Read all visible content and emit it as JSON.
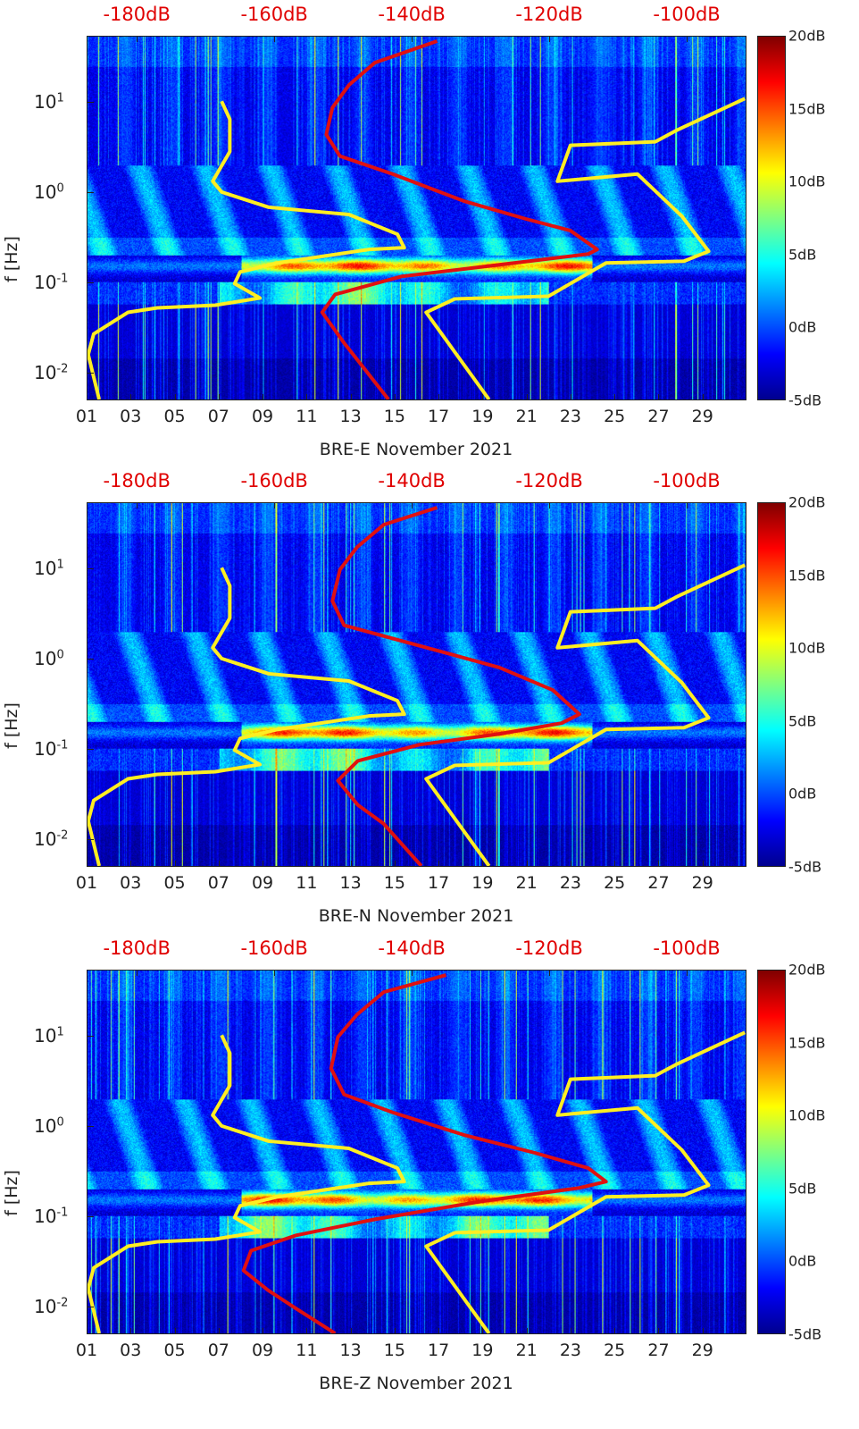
{
  "chart_data": {
    "type": "heatmap",
    "colorbar": {
      "ticks": [
        "20dB",
        "15dB",
        "10dB",
        "5dB",
        "0dB",
        "-5dB"
      ],
      "range": [
        -5,
        20
      ],
      "colormap": "jet"
    },
    "x_range_days": [
      1,
      31
    ],
    "y_range_log10_hz": [
      -2.31,
      1.73
    ],
    "top_axis_range_db": [
      -187.3,
      -91.3
    ],
    "top_ticks": [
      {
        "label": "-180dB",
        "value": -180
      },
      {
        "label": "-160dB",
        "value": -160
      },
      {
        "label": "-140dB",
        "value": -140
      },
      {
        "label": "-120dB",
        "value": -120
      },
      {
        "label": "-100dB",
        "value": -100
      }
    ],
    "x_ticks": [
      {
        "label": "01",
        "value": 1
      },
      {
        "label": "03",
        "value": 3
      },
      {
        "label": "05",
        "value": 5
      },
      {
        "label": "07",
        "value": 7
      },
      {
        "label": "09",
        "value": 9
      },
      {
        "label": "11",
        "value": 11
      },
      {
        "label": "13",
        "value": 13
      },
      {
        "label": "15",
        "value": 15
      },
      {
        "label": "17",
        "value": 17
      },
      {
        "label": "19",
        "value": 19
      },
      {
        "label": "21",
        "value": 21
      },
      {
        "label": "23",
        "value": 23
      },
      {
        "label": "25",
        "value": 25
      },
      {
        "label": "27",
        "value": 27
      },
      {
        "label": "29",
        "value": 29
      }
    ],
    "y_ticks": [
      {
        "base": "10",
        "exp": "1",
        "value": 1
      },
      {
        "base": "10",
        "exp": "0",
        "value": 0
      },
      {
        "base": "10",
        "exp": "-1",
        "value": -1
      },
      {
        "base": "10",
        "exp": "-2",
        "value": -2
      }
    ],
    "ylabel": "f [Hz]",
    "colors": {
      "nlnm": "#ffee22",
      "nhnm": "#ffee22",
      "median": "#e01010"
    },
    "nlnm_db_log10f": [
      [
        -185.7,
        -2.31
      ],
      [
        -187.3,
        -1.81
      ],
      [
        -186.5,
        -1.58
      ],
      [
        -181.5,
        -1.34
      ],
      [
        -177.2,
        -1.29
      ],
      [
        -168.7,
        -1.26
      ],
      [
        -162.2,
        -1.18
      ],
      [
        -165.9,
        -1.02
      ],
      [
        -165.1,
        -0.89
      ],
      [
        -159.6,
        -0.79
      ],
      [
        -146.3,
        -0.64
      ],
      [
        -141.1,
        -0.62
      ],
      [
        -142.1,
        -0.47
      ],
      [
        -149.2,
        -0.25
      ],
      [
        -160.9,
        -0.17
      ],
      [
        -167.8,
        0.0
      ],
      [
        -169.1,
        0.12
      ],
      [
        -166.6,
        0.45
      ],
      [
        -166.6,
        0.81
      ],
      [
        -167.8,
        1.01
      ]
    ],
    "nhnm_db_log10f": [
      [
        -128.7,
        -2.31
      ],
      [
        -137.9,
        -1.34
      ],
      [
        -133.7,
        -1.19
      ],
      [
        -120.0,
        -1.16
      ],
      [
        -111.6,
        -0.79
      ],
      [
        -100.2,
        -0.77
      ],
      [
        -96.6,
        -0.66
      ],
      [
        -100.5,
        -0.27
      ],
      [
        -107.0,
        0.2
      ],
      [
        -118.7,
        0.12
      ],
      [
        -116.8,
        0.52
      ],
      [
        -104.4,
        0.56
      ],
      [
        -101.2,
        0.69
      ],
      [
        -91.3,
        1.04
      ]
    ],
    "panels": [
      {
        "xlabel": "BRE-E November 2021",
        "median_db_log10f": [
          [
            -143.4,
            -2.31
          ],
          [
            -149.9,
            -1.68
          ],
          [
            -153.1,
            -1.34
          ],
          [
            -151.2,
            -1.14
          ],
          [
            -141.5,
            -0.94
          ],
          [
            -127.2,
            -0.81
          ],
          [
            -114.2,
            -0.69
          ],
          [
            -112.9,
            -0.64
          ],
          [
            -116.8,
            -0.43
          ],
          [
            -123.3,
            -0.3
          ],
          [
            -132.4,
            -0.1
          ],
          [
            -142.8,
            0.2
          ],
          [
            -150.5,
            0.4
          ],
          [
            -152.5,
            0.64
          ],
          [
            -151.6,
            0.94
          ],
          [
            -149.2,
            1.19
          ],
          [
            -145.4,
            1.44
          ],
          [
            -136.3,
            1.68
          ]
        ]
      },
      {
        "xlabel": "BRE-N November 2021",
        "median_db_log10f": [
          [
            -138.6,
            -2.31
          ],
          [
            -144.1,
            -1.84
          ],
          [
            -147.9,
            -1.63
          ],
          [
            -150.8,
            -1.36
          ],
          [
            -147.9,
            -1.14
          ],
          [
            -138.9,
            -0.96
          ],
          [
            -127.2,
            -0.84
          ],
          [
            -118.1,
            -0.72
          ],
          [
            -115.5,
            -0.62
          ],
          [
            -119.4,
            -0.35
          ],
          [
            -127.2,
            -0.1
          ],
          [
            -140.2,
            0.17
          ],
          [
            -149.9,
            0.37
          ],
          [
            -151.6,
            0.64
          ],
          [
            -150.5,
            0.99
          ],
          [
            -148.0,
            1.24
          ],
          [
            -144.1,
            1.49
          ],
          [
            -136.3,
            1.68
          ]
        ]
      },
      {
        "xlabel": "BRE-Z November 2021",
        "median_db_log10f": [
          [
            -151.2,
            -2.31
          ],
          [
            -157.0,
            -2.03
          ],
          [
            -161.0,
            -1.83
          ],
          [
            -164.6,
            -1.61
          ],
          [
            -163.5,
            -1.39
          ],
          [
            -157.0,
            -1.22
          ],
          [
            -145.4,
            -1.04
          ],
          [
            -129.8,
            -0.84
          ],
          [
            -115.5,
            -0.69
          ],
          [
            -111.6,
            -0.62
          ],
          [
            -114.2,
            -0.47
          ],
          [
            -122.0,
            -0.3
          ],
          [
            -132.4,
            -0.1
          ],
          [
            -142.8,
            0.15
          ],
          [
            -149.9,
            0.35
          ],
          [
            -151.8,
            0.64
          ],
          [
            -150.8,
            0.99
          ],
          [
            -148.0,
            1.24
          ],
          [
            -144.1,
            1.49
          ],
          [
            -135.0,
            1.68
          ]
        ]
      }
    ]
  }
}
